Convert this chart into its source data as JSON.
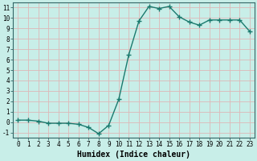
{
  "x": [
    0,
    1,
    2,
    3,
    4,
    5,
    6,
    7,
    8,
    9,
    10,
    11,
    12,
    13,
    14,
    15,
    16,
    17,
    18,
    19,
    20,
    21,
    22,
    23
  ],
  "y": [
    0.2,
    0.2,
    0.1,
    -0.1,
    -0.1,
    -0.1,
    -0.2,
    -0.5,
    -1.1,
    -0.3,
    2.2,
    6.5,
    9.7,
    11.1,
    10.9,
    11.1,
    10.1,
    9.6,
    9.3,
    9.8,
    9.8,
    9.8,
    9.8,
    8.7
  ],
  "line_color": "#1a7a6e",
  "marker": "+",
  "markersize": 4,
  "linewidth": 1.0,
  "xlabel": "Humidex (Indice chaleur)",
  "xlabel_fontsize": 7,
  "xlim": [
    -0.5,
    23.5
  ],
  "ylim": [
    -1.5,
    11.5
  ],
  "yticks": [
    -1,
    0,
    1,
    2,
    3,
    4,
    5,
    6,
    7,
    8,
    9,
    10,
    11
  ],
  "xticks": [
    0,
    1,
    2,
    3,
    4,
    5,
    6,
    7,
    8,
    9,
    10,
    11,
    12,
    13,
    14,
    15,
    16,
    17,
    18,
    19,
    20,
    21,
    22,
    23
  ],
  "background_color": "#c8eee8",
  "grid_color": "#ddb8b8",
  "tick_fontsize": 5.5,
  "spine_color": "#336666"
}
